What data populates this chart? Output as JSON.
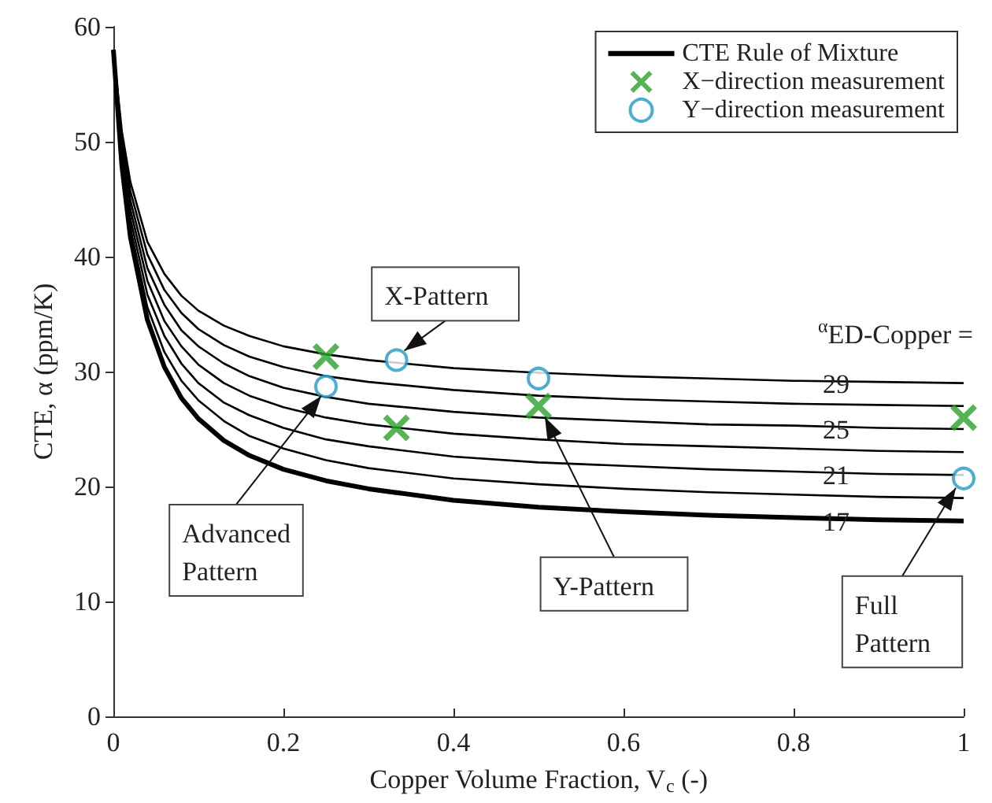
{
  "chart_data": {
    "type": "line",
    "xlabel": "Copper Volume Fraction, V$_{c}$ (-)",
    "ylabel": "CTE, α (ppm/K)",
    "xlim": [
      0,
      1
    ],
    "ylim": [
      0,
      60
    ],
    "xticks": [
      0,
      0.2,
      0.4,
      0.6,
      0.8,
      1
    ],
    "yticks": [
      0,
      10,
      20,
      30,
      40,
      50,
      60
    ],
    "legend": "top right",
    "line_style": "solid",
    "x": [
      0,
      0.01,
      0.02,
      0.04,
      0.06,
      0.08,
      0.1,
      0.13,
      0.16,
      0.2,
      0.25,
      0.3,
      0.4,
      0.5,
      0.6,
      0.7,
      0.8,
      0.9,
      1
    ],
    "series": [
      {
        "name": "CTE Rule of Mixture",
        "color": "#000000",
        "values": [
          58,
          47.9,
          41.7,
          34.5,
          30.4,
          27.7,
          25.9,
          24.0,
          22.7,
          21.5,
          20.5,
          19.8,
          18.8,
          18.2,
          17.8,
          17.5,
          17.3,
          17.1,
          17
        ]
      },
      {
        "color": "#000000",
        "values": [
          58,
          48.4,
          42.5,
          35.6,
          31.7,
          29.2,
          27.5,
          25.7,
          24.4,
          23.3,
          22.3,
          21.6,
          20.7,
          20.2,
          19.8,
          19.5,
          19.3,
          19.1,
          19
        ]
      },
      {
        "color": "#000000",
        "values": [
          58,
          48.9,
          43.3,
          36.7,
          33.1,
          30.7,
          29.0,
          27.3,
          26.2,
          25.1,
          24.1,
          23.5,
          22.6,
          22.1,
          21.8,
          21.5,
          21.3,
          21.1,
          21
        ]
      },
      {
        "color": "#000000",
        "values": [
          58,
          49.4,
          44.1,
          37.9,
          34.4,
          32.2,
          30.6,
          29.0,
          27.9,
          26.9,
          26.0,
          25.4,
          24.6,
          24.1,
          23.7,
          23.5,
          23.3,
          23.1,
          23
        ]
      },
      {
        "color": "#000000",
        "values": [
          58,
          49.9,
          44.9,
          39.0,
          35.8,
          33.6,
          32.2,
          30.7,
          29.6,
          28.6,
          27.8,
          27.2,
          26.5,
          26.0,
          25.7,
          25.4,
          25.3,
          25.1,
          25
        ]
      },
      {
        "color": "#000000",
        "values": [
          58,
          50.4,
          45.7,
          40.2,
          37.1,
          35.1,
          33.7,
          32.3,
          31.3,
          30.4,
          29.6,
          29.1,
          28.4,
          27.9,
          27.6,
          27.4,
          27.2,
          27.1,
          27
        ]
      },
      {
        "color": "#000000",
        "values": [
          58,
          50.9,
          46.5,
          41.3,
          38.5,
          36.6,
          35.3,
          34.0,
          33.1,
          32.2,
          31.5,
          31.0,
          30.3,
          29.9,
          29.6,
          29.4,
          29.2,
          29.1,
          29
        ]
      },
      {
        "name": "X−direction measurement",
        "type": "scatter",
        "marker": "cross",
        "color": "#2ca02c",
        "x": [
          0.25,
          0.333,
          0.5,
          1
        ],
        "values": [
          31.3,
          25.1,
          27.0,
          26.0
        ]
      },
      {
        "name": "Y−direction measurement",
        "type": "scatter",
        "marker": "circle",
        "color": "#1f9bc4",
        "x": [
          0.25,
          0.333,
          0.5,
          1
        ],
        "values": [
          28.7,
          31.0,
          29.4,
          20.7
        ]
      }
    ],
    "annotations": [
      {
        "text": "X-Pattern",
        "x": 0.333,
        "y": 31.0
      },
      {
        "text": "Advanced Pattern",
        "x": 0.25,
        "y": 28.7
      },
      {
        "text": "Y-Pattern",
        "x": 0.5,
        "y": 27.0
      },
      {
        "text": "Full Pattern",
        "x": 1,
        "y": 20.7
      },
      "$^{α}$ED-Copper =",
      {
        "text": "29",
        "x": 0.85,
        "y": 29
      },
      {
        "text": "25",
        "x": 0.85,
        "y": 25
      },
      {
        "text": "21",
        "x": 0.85,
        "y": 21
      },
      {
        "text": "17",
        "x": 0.85,
        "y": 17
      }
    ]
  }
}
